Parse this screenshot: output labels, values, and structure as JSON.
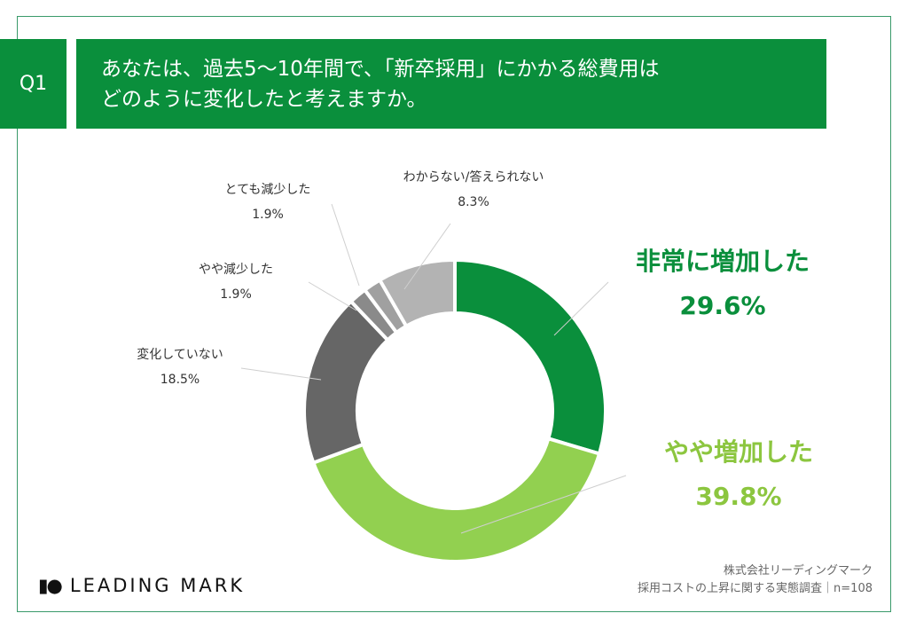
{
  "header": {
    "question_no": "Q1",
    "question_lines": [
      "あなたは、過去5〜10年間で、「新卒採用」にかかる総費用は",
      "どのように変化したと考えますか。"
    ]
  },
  "chart_data": {
    "type": "pie",
    "variant": "donut",
    "start": "12 o'clock, clockwise",
    "slices": [
      {
        "label": "非常に増加した",
        "value": 29.6,
        "display": "29.6%",
        "color": "#0a8f3c"
      },
      {
        "label": "やや増加した",
        "value": 39.8,
        "display": "39.8%",
        "color": "#92d050"
      },
      {
        "label": "変化していない",
        "value": 18.5,
        "display": "18.5%",
        "color": "#666666"
      },
      {
        "label": "やや減少した",
        "value": 1.9,
        "display": "1.9%",
        "color": "#8a8a8a"
      },
      {
        "label": "とても減少した",
        "value": 1.9,
        "display": "1.9%",
        "color": "#a0a0a0"
      },
      {
        "label": "わからない/答えられない",
        "value": 8.3,
        "display": "8.3%",
        "color": "#b3b3b3"
      }
    ]
  },
  "footer": {
    "logo_text": "LEADING MARK",
    "logo_mark": "D●",
    "source_company": "株式会社リーディングマーク",
    "source_survey": "採用コストの上昇に関する実態調査｜n=108"
  }
}
